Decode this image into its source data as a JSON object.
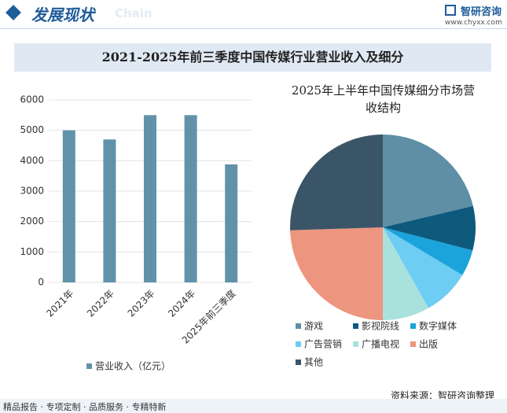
{
  "header": {
    "title": "发展现状",
    "subtitle": "Chain",
    "brand": "智研咨询",
    "url": "www.chyxx.com"
  },
  "title": "2021-2025年前三季度中国传媒行业营业收入及细分",
  "chart_data": [
    {
      "type": "bar",
      "categories": [
        "2021年",
        "2022年",
        "2023年",
        "2024年",
        "2025年前三季度"
      ],
      "series": [
        {
          "name": "营业收入（亿元）",
          "color": "#6192aa",
          "values": [
            5000,
            4700,
            5500,
            5500,
            3880
          ]
        }
      ],
      "ylim": [
        0,
        6000
      ],
      "yticks": [
        0,
        1000,
        2000,
        3000,
        4000,
        5000,
        6000
      ],
      "grid": true,
      "legend": "bottom"
    },
    {
      "type": "pie",
      "title": "2025年上半年中国传媒细分市场营收结构",
      "categories": [
        "游戏",
        "影视院线",
        "数字媒体",
        "广告营销",
        "广播电视",
        "出版",
        "其他"
      ],
      "values": [
        21.3,
        7.7,
        4.6,
        8.2,
        8.2,
        24.5,
        25.5
      ],
      "colors": [
        "#5e8fa6",
        "#0e5a7c",
        "#1ba3dc",
        "#6dcdf3",
        "#a9e1dc",
        "#ee9580",
        "#3b5568"
      ],
      "legend": "bottom"
    }
  ],
  "footer": {
    "tagline": "精品报告 · 专项定制 · 品质服务 · 专精特新",
    "source": "资料来源：智研咨询整理"
  }
}
